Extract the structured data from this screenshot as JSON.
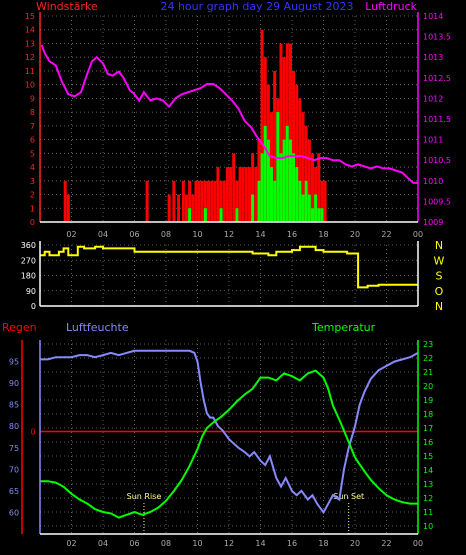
{
  "header": {
    "left_title": "Windstärke",
    "center_title": "24 hour graph day  29 August 2023",
    "right_title": "Luftdruck"
  },
  "colors": {
    "wind_axis": "#ff2222",
    "pressure": "#ff00ff",
    "wind_gust": "#ff0000",
    "wind_avg": "#00ff00",
    "direction": "#ffff00",
    "rain": "#ff0000",
    "humidity": "#8888ff",
    "temperature": "#00ff00",
    "title_blue": "#3333ff",
    "axis_white": "#ffffff"
  },
  "x_axis": {
    "ticks": [
      "02",
      "04",
      "06",
      "08",
      "10",
      "12",
      "14",
      "16",
      "18",
      "20",
      "22",
      "00"
    ],
    "range": [
      0,
      24
    ]
  },
  "chart_data": [
    {
      "type": "bar",
      "name": "wind-pressure",
      "left_axis": {
        "range": [
          0,
          15
        ],
        "ticks": [
          "0",
          "1",
          "2",
          "3",
          "4",
          "5",
          "6",
          "7",
          "8",
          "9",
          "10",
          "11",
          "12",
          "13",
          "14",
          "15"
        ]
      },
      "right_axis": {
        "range": [
          1009,
          1014
        ],
        "ticks": [
          "1009",
          "1009.5",
          "1010",
          "1010.5",
          "1011",
          "1011.5",
          "1012",
          "1012.5",
          "1013",
          "1013.5",
          "1014"
        ]
      },
      "series": [
        {
          "kind": "line",
          "axis": "right",
          "x": [
            0.1,
            0.3,
            0.6,
            1.0,
            1.4,
            1.8,
            2.2,
            2.6,
            3.0,
            3.3,
            3.6,
            4.0,
            4.3,
            4.6,
            5.0,
            5.3,
            5.7,
            6.0,
            6.3,
            6.6,
            7.0,
            7.4,
            7.8,
            8.2,
            8.6,
            9.0,
            9.4,
            9.8,
            10.2,
            10.6,
            11.0,
            11.4,
            11.8,
            12.2,
            12.6,
            13.0,
            13.4,
            13.8,
            14.2,
            14.6,
            15.0,
            15.4,
            15.8,
            16.2,
            16.6,
            17.0,
            17.4,
            17.8,
            18.2,
            18.6,
            19.0,
            19.4,
            19.8,
            20.2,
            20.6,
            21.0,
            21.4,
            21.8,
            22.2,
            22.6,
            23.0,
            23.4,
            23.7,
            24.0
          ],
          "values": [
            1013.3,
            1013.1,
            1012.9,
            1012.8,
            1012.4,
            1012.1,
            1012.05,
            1012.15,
            1012.6,
            1012.9,
            1013.0,
            1012.85,
            1012.6,
            1012.55,
            1012.65,
            1012.5,
            1012.2,
            1012.1,
            1011.95,
            1012.15,
            1011.95,
            1012.0,
            1011.95,
            1011.8,
            1012.0,
            1012.1,
            1012.15,
            1012.2,
            1012.25,
            1012.35,
            1012.35,
            1012.25,
            1012.1,
            1011.95,
            1011.75,
            1011.45,
            1011.3,
            1011.05,
            1010.85,
            1010.6,
            1010.55,
            1010.55,
            1010.6,
            1010.6,
            1010.6,
            1010.55,
            1010.5,
            1010.55,
            1010.55,
            1010.5,
            1010.5,
            1010.4,
            1010.35,
            1010.4,
            1010.35,
            1010.3,
            1010.35,
            1010.3,
            1010.3,
            1010.25,
            1010.2,
            1010.05,
            1009.95,
            1009.95
          ]
        },
        {
          "kind": "bar",
          "axis": "left",
          "x": [
            1.6,
            1.8,
            6.8,
            8.2,
            8.5,
            8.8,
            9.1,
            9.3,
            9.5,
            9.7,
            9.9,
            10.1,
            10.3,
            10.5,
            10.7,
            10.9,
            11.1,
            11.3,
            11.5,
            11.7,
            11.9,
            12.1,
            12.3,
            12.5,
            12.7,
            12.9,
            13.1,
            13.3,
            13.5,
            13.7,
            13.9,
            14.1,
            14.3,
            14.5,
            14.7,
            14.9,
            15.1,
            15.3,
            15.5,
            15.7,
            15.9,
            16.1,
            16.3,
            16.5,
            16.7,
            16.9,
            17.1,
            17.3,
            17.5,
            17.7,
            17.9,
            18.1
          ],
          "values": [
            3,
            2,
            3,
            2,
            3,
            2,
            3,
            2,
            3,
            2,
            3,
            3,
            3,
            3,
            3,
            3,
            3,
            4,
            3,
            3,
            4,
            4,
            5,
            3,
            4,
            4,
            4,
            4,
            5,
            4,
            6,
            14,
            12,
            10,
            8,
            11,
            9,
            13,
            12,
            13,
            13,
            11,
            10,
            9,
            8,
            7,
            6,
            5,
            4,
            5,
            3,
            3
          ]
        },
        {
          "kind": "bar",
          "axis": "left",
          "x": [
            9.5,
            10.5,
            11.5,
            12.5,
            13.5,
            13.9,
            14.1,
            14.3,
            14.5,
            14.7,
            14.9,
            15.1,
            15.3,
            15.5,
            15.7,
            15.9,
            16.1,
            16.3,
            16.5,
            16.7,
            16.9,
            17.1,
            17.3,
            17.5,
            17.7,
            17.9
          ],
          "values": [
            1,
            1,
            1,
            1,
            2,
            3,
            5,
            7,
            6,
            4,
            3,
            8,
            5,
            6,
            7,
            6,
            5,
            4,
            3,
            2,
            3,
            2,
            1,
            2,
            1,
            1
          ]
        }
      ]
    },
    {
      "type": "line",
      "name": "wind-direction",
      "left_axis": {
        "range": [
          0,
          360
        ],
        "ticks": [
          "0",
          "90",
          "180",
          "270",
          "360"
        ]
      },
      "right_labels": [
        "N",
        "W",
        "S",
        "O",
        "N"
      ],
      "x": [
        0,
        0.3,
        0.3,
        0.6,
        0.6,
        1.2,
        1.2,
        1.5,
        1.5,
        1.8,
        1.8,
        2.4,
        2.4,
        2.8,
        2.8,
        3.5,
        3.5,
        4.0,
        4.0,
        6.0,
        6.0,
        13.5,
        13.5,
        14.5,
        14.5,
        15.0,
        15.0,
        16.0,
        16.0,
        16.5,
        16.5,
        17.5,
        17.5,
        18.0,
        18.0,
        19.5,
        19.5,
        20.2,
        20.2,
        20.8,
        20.8,
        21.5,
        21.5,
        24.0
      ],
      "values": [
        300,
        300,
        320,
        320,
        300,
        300,
        320,
        320,
        340,
        340,
        300,
        300,
        350,
        350,
        340,
        340,
        350,
        350,
        340,
        340,
        320,
        320,
        310,
        310,
        300,
        300,
        320,
        320,
        330,
        330,
        350,
        350,
        330,
        330,
        320,
        320,
        310,
        310,
        110,
        110,
        120,
        120,
        125,
        125
      ]
    },
    {
      "type": "line",
      "name": "humidity-temperature",
      "left_axis": {
        "label": "Luftfeuchte",
        "range": [
          55,
          100
        ],
        "ticks": [
          "60",
          "65",
          "70",
          "75",
          "80",
          "85",
          "90",
          "95"
        ]
      },
      "left_axis_rain": {
        "label": "Regen",
        "ticks": [
          "0"
        ]
      },
      "right_axis": {
        "label": "Temperatur",
        "range": [
          10,
          23
        ],
        "ticks": [
          "10",
          "11",
          "12",
          "13",
          "14",
          "15",
          "16",
          "17",
          "18",
          "19",
          "20",
          "21",
          "22",
          "23"
        ]
      },
      "series": [
        {
          "name": "Luftfeuchte",
          "axis": "left",
          "x": [
            0.0,
            0.5,
            1.0,
            2.0,
            2.5,
            3.0,
            3.5,
            4.0,
            4.5,
            5.0,
            5.5,
            6.0,
            7.0,
            8.0,
            9.0,
            9.5,
            9.8,
            10.0,
            10.2,
            10.4,
            10.6,
            10.8,
            11.0,
            11.3,
            11.6,
            12.0,
            12.3,
            12.6,
            13.0,
            13.3,
            13.6,
            14.0,
            14.3,
            14.6,
            15.0,
            15.3,
            15.6,
            16.0,
            16.3,
            16.6,
            17.0,
            17.3,
            17.6,
            18.0,
            18.3,
            18.6,
            19.0,
            19.3,
            19.6,
            20.0,
            20.3,
            20.6,
            21.0,
            21.5,
            22.0,
            22.5,
            23.0,
            23.5,
            24.0
          ],
          "values": [
            95.5,
            95.5,
            96,
            96,
            96.5,
            96.5,
            96,
            96.5,
            97,
            96.5,
            97,
            97.5,
            97.5,
            97.5,
            97.5,
            97.5,
            97,
            95,
            90,
            86,
            83,
            82,
            82,
            80,
            79,
            77,
            76,
            75,
            74,
            73,
            74,
            72,
            71,
            73,
            68,
            66,
            68,
            65,
            64,
            65,
            63,
            64,
            62,
            60,
            62,
            64,
            63,
            70,
            75,
            80,
            85,
            88,
            91,
            93,
            94,
            95,
            95.5,
            96,
            97
          ]
        },
        {
          "name": "Temperatur",
          "axis": "right",
          "x": [
            0.0,
            0.5,
            1.0,
            1.5,
            2.0,
            2.5,
            3.0,
            3.5,
            4.0,
            4.5,
            5.0,
            5.5,
            6.0,
            6.5,
            7.0,
            7.5,
            8.0,
            8.5,
            9.0,
            9.5,
            10.0,
            10.3,
            10.6,
            11.0,
            11.5,
            12.0,
            12.5,
            13.0,
            13.5,
            14.0,
            14.5,
            15.0,
            15.5,
            16.0,
            16.5,
            17.0,
            17.5,
            18.0,
            18.3,
            18.6,
            19.0,
            19.3,
            19.6,
            20.0,
            20.3,
            20.6,
            21.0,
            21.5,
            22.0,
            22.5,
            23.0,
            23.5,
            24.0
          ],
          "values": [
            13.2,
            13.2,
            13.1,
            12.8,
            12.3,
            11.9,
            11.6,
            11.2,
            11.0,
            10.9,
            10.6,
            10.8,
            11.0,
            10.8,
            11.0,
            11.3,
            11.8,
            12.5,
            13.3,
            14.3,
            15.5,
            16.4,
            17.0,
            17.4,
            17.8,
            18.3,
            18.9,
            19.4,
            19.8,
            20.6,
            20.6,
            20.4,
            20.9,
            20.7,
            20.4,
            20.9,
            21.1,
            20.6,
            19.8,
            18.6,
            17.6,
            16.8,
            16.0,
            14.9,
            14.4,
            13.9,
            13.3,
            12.7,
            12.2,
            11.9,
            11.7,
            11.6,
            11.6
          ]
        },
        {
          "name": "Regen",
          "axis": "rain",
          "x": [
            0,
            24
          ],
          "values": [
            0,
            0
          ]
        }
      ],
      "annotations": [
        {
          "label": "Sun Rise",
          "x": 6.6
        },
        {
          "label": "Sun Set",
          "x": 19.6
        }
      ]
    }
  ]
}
